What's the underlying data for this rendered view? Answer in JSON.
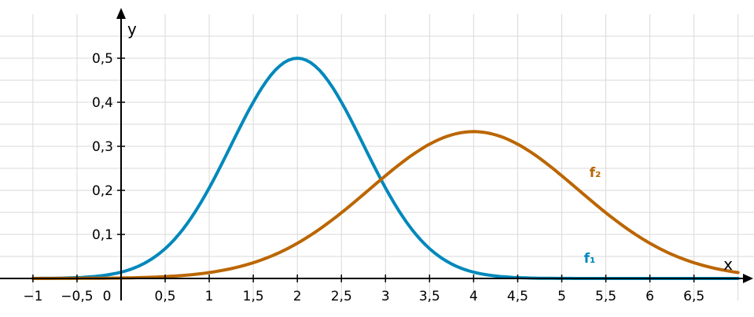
{
  "chart_data": {
    "type": "line",
    "x_axis": {
      "label": "x",
      "range": [
        -1,
        7
      ],
      "ticks": [
        -1,
        -0.5,
        0,
        0.5,
        1,
        1.5,
        2,
        2.5,
        3,
        3.5,
        4,
        4.5,
        5,
        5.5,
        6,
        6.5
      ],
      "tick_labels": [
        "−1",
        "−0,5",
        "0",
        "0,5",
        "1",
        "1,5",
        "2",
        "2,5",
        "3",
        "3,5",
        "4",
        "4,5",
        "5",
        "5,5",
        "6",
        "6,5"
      ]
    },
    "y_axis": {
      "label": "y",
      "range": [
        0,
        0.55
      ],
      "ticks": [
        0.1,
        0.2,
        0.3,
        0.4,
        0.5
      ],
      "tick_labels": [
        "0,1",
        "0,2",
        "0,3",
        "0,4",
        "0,5"
      ]
    },
    "grid": true,
    "series": [
      {
        "name": "f₁",
        "color": "#0088bb",
        "x": [
          -1,
          -0.5,
          0,
          0.5,
          1,
          1.5,
          2,
          2.5,
          3,
          3.5,
          4,
          4.5,
          5,
          5.5,
          6,
          6.5,
          7
        ],
        "y": [
          0.0,
          0.004,
          0.022,
          0.086,
          0.227,
          0.41,
          0.5,
          0.41,
          0.227,
          0.086,
          0.022,
          0.004,
          0.0,
          0.0,
          0.0,
          0.0,
          0.0
        ]
      },
      {
        "name": "f₂",
        "color": "#bb6600",
        "x": [
          -1,
          -0.5,
          0,
          0.5,
          1,
          1.5,
          2,
          2.5,
          3,
          3.5,
          4,
          4.5,
          5,
          5.5,
          6,
          6.5,
          7
        ],
        "y": [
          0.001,
          0.002,
          0.005,
          0.011,
          0.022,
          0.041,
          0.086,
          0.155,
          0.235,
          0.309,
          0.333,
          0.309,
          0.235,
          0.155,
          0.086,
          0.041,
          0.022
        ]
      }
    ]
  }
}
